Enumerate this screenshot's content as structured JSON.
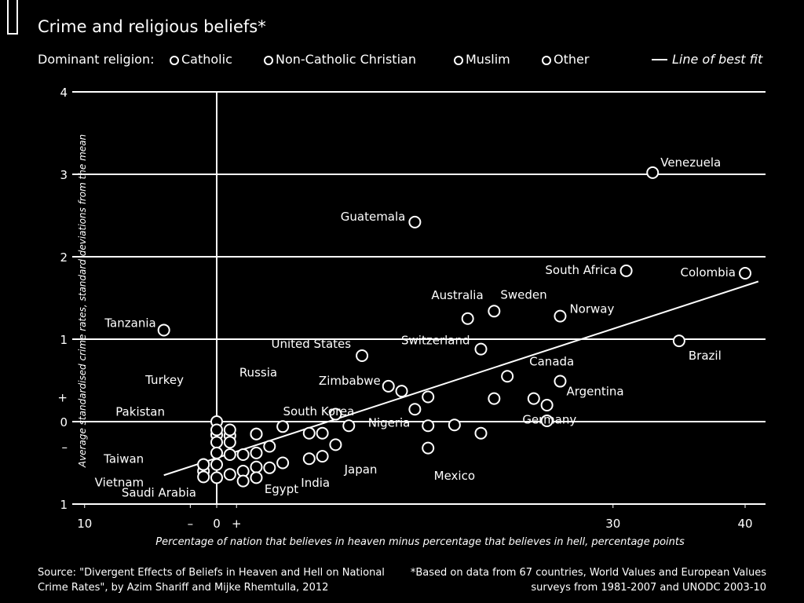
{
  "title": "Crime and religious beliefs*",
  "legend": {
    "label": "Dominant religion:",
    "items": [
      "Catholic",
      "Non-Catholic Christian",
      "Muslim",
      "Other"
    ],
    "fit_label": "Line of best fit"
  },
  "source": "Source: \"Divergent Effects of Beliefs in Heaven and Hell on National Crime Rates\", by Azim Shariff and Mijke Rhemtulla, 2012",
  "note": "*Based on data from 67 countries, World Values and European Values surveys from 1981-2007 and UNODC 2003-10",
  "colors": {
    "background": "#000000",
    "foreground": "#ffffff"
  },
  "chart_data": {
    "type": "scatter",
    "xlabel": "Percentage of nation that believes in heaven minus percentage that believes in hell, percentage points",
    "ylabel": "Average standardised crime rates, standard deviations from the mean",
    "xlim": [
      -10,
      41
    ],
    "ylim": [
      -1,
      4
    ],
    "x_ticks": [
      {
        "value": -10,
        "label": "10"
      },
      {
        "value": -2,
        "label": "–"
      },
      {
        "value": 0,
        "label": "0"
      },
      {
        "value": 1.5,
        "label": "+"
      },
      {
        "value": 30,
        "label": "30"
      },
      {
        "value": 40,
        "label": "40"
      }
    ],
    "y_ticks": [
      {
        "value": 4,
        "label": "4"
      },
      {
        "value": 3,
        "label": "3"
      },
      {
        "value": 2,
        "label": "2"
      },
      {
        "value": 1,
        "label": "1"
      },
      {
        "value": 0.3,
        "label": "+"
      },
      {
        "value": 0,
        "label": "0"
      },
      {
        "value": -0.3,
        "label": "–"
      },
      {
        "value": -1,
        "label": "1"
      }
    ],
    "gridlines_y": [
      4,
      3,
      2,
      1,
      0,
      -1
    ],
    "best_fit": {
      "x": [
        -4,
        41
      ],
      "y": [
        -0.65,
        1.7
      ]
    },
    "labeled_points": [
      {
        "name": "Venezuela",
        "x": 33,
        "y": 3.02
      },
      {
        "name": "Guatemala",
        "x": 15,
        "y": 2.42
      },
      {
        "name": "South Africa",
        "x": 31,
        "y": 1.83
      },
      {
        "name": "Colombia",
        "x": 40,
        "y": 1.8
      },
      {
        "name": "Sweden",
        "x": 21,
        "y": 1.34
      },
      {
        "name": "Norway",
        "x": 26,
        "y": 1.28
      },
      {
        "name": "Australia",
        "x": 19,
        "y": 1.25
      },
      {
        "name": "Tanzania",
        "x": -4,
        "y": 1.11
      },
      {
        "name": "Brazil",
        "x": 35,
        "y": 0.98
      },
      {
        "name": "United States",
        "x": 11,
        "y": 0.8
      },
      {
        "name": "Switzerland",
        "x": 20,
        "y": 0.88
      },
      {
        "name": "Canada",
        "x": 22,
        "y": 0.55
      },
      {
        "name": "Argentina",
        "x": 26,
        "y": 0.49
      },
      {
        "name": "Zimbabwe",
        "x": 13,
        "y": 0.43
      },
      {
        "name": "Russia",
        "x": 1,
        "y": -0.1
      },
      {
        "name": "Turkey",
        "x": 0,
        "y": 0.0
      },
      {
        "name": "South Korea",
        "x": 3,
        "y": -0.15
      },
      {
        "name": "Pakistan",
        "x": 0,
        "y": -0.1
      },
      {
        "name": "Nigeria",
        "x": 15,
        "y": 0.15
      },
      {
        "name": "Germany",
        "x": 21,
        "y": 0.28
      },
      {
        "name": "Mexico",
        "x": 18,
        "y": -0.04
      },
      {
        "name": "Taiwan",
        "x": -1,
        "y": -0.52
      },
      {
        "name": "Vietnam",
        "x": -1,
        "y": -0.67
      },
      {
        "name": "Saudi Arabia",
        "x": 0,
        "y": -0.68
      },
      {
        "name": "Egypt",
        "x": 1,
        "y": -0.64
      },
      {
        "name": "India",
        "x": 4,
        "y": -0.56
      },
      {
        "name": "Japan",
        "x": 8,
        "y": -0.42
      }
    ],
    "unlabeled_points": [
      [
        0,
        -0.16
      ],
      [
        1,
        -0.17
      ],
      [
        0,
        -0.25
      ],
      [
        1,
        -0.25
      ],
      [
        3,
        -0.15
      ],
      [
        5,
        -0.06
      ],
      [
        7,
        -0.14
      ],
      [
        8,
        -0.14
      ],
      [
        9,
        0.09
      ],
      [
        10,
        -0.05
      ],
      [
        14,
        0.37
      ],
      [
        16,
        0.3
      ],
      [
        16,
        -0.05
      ],
      [
        16,
        -0.32
      ],
      [
        20,
        -0.14
      ],
      [
        24,
        0.28
      ],
      [
        25,
        0.2
      ],
      [
        25,
        0.01
      ],
      [
        0,
        -0.38
      ],
      [
        1,
        -0.4
      ],
      [
        2,
        -0.4
      ],
      [
        3,
        -0.38
      ],
      [
        4,
        -0.3
      ],
      [
        9,
        -0.28
      ],
      [
        -1,
        -0.6
      ],
      [
        0,
        -0.52
      ],
      [
        2,
        -0.6
      ],
      [
        3,
        -0.55
      ],
      [
        3,
        -0.68
      ],
      [
        5,
        -0.5
      ],
      [
        7,
        -0.45
      ],
      [
        2,
        -0.72
      ],
      [
        -1,
        -0.52
      ]
    ]
  }
}
